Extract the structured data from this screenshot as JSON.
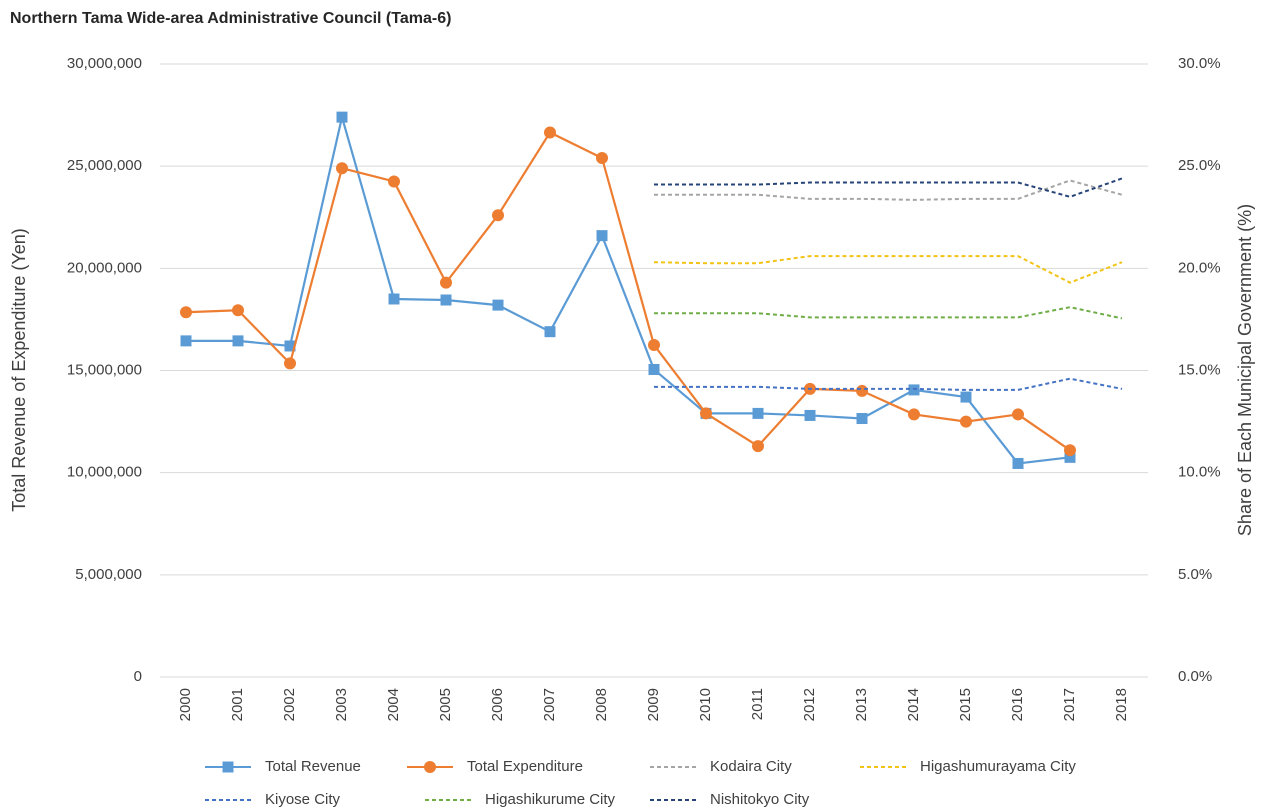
{
  "chart_data": {
    "type": "line",
    "title": "Northern Tama Wide-area Administrative Council (Tama-6)",
    "y_label": "Total Revenue of Expenditure (Yen)",
    "y2_label": "Share of Each Municipal Government (%)",
    "categories": [
      "2000",
      "2001",
      "2002",
      "2003",
      "2004",
      "2005",
      "2006",
      "2007",
      "2008",
      "2009",
      "2010",
      "2011",
      "2012",
      "2013",
      "2014",
      "2015",
      "2016",
      "2017",
      "2018"
    ],
    "ylim": [
      0,
      30000000
    ],
    "yticks": [
      0,
      {
        "value": 5000000,
        "label": "5,000,000"
      },
      {
        "value": 10000000,
        "label": "10,000,000"
      },
      {
        "value": 15000000,
        "label": "15,000,000"
      },
      {
        "value": 20000000,
        "label": "20,000,000"
      },
      {
        "value": 25000000,
        "label": "25,000,000"
      },
      {
        "value": 30000000,
        "label": "30,000,000"
      }
    ],
    "y2lim": [
      0,
      30
    ],
    "y2ticks": [
      {
        "value": 0,
        "label": "0.0%"
      },
      {
        "value": 5,
        "label": "5.0%"
      },
      {
        "value": 10,
        "label": "10.0%"
      },
      {
        "value": 15,
        "label": "15.0%"
      },
      {
        "value": 20,
        "label": "20.0%"
      },
      {
        "value": 25,
        "label": "25.0%"
      },
      {
        "value": 30,
        "label": "30.0%"
      }
    ],
    "grid": true,
    "legend": "bottom",
    "series": [
      {
        "name": "Total Revenue",
        "color": "#5b9bd5",
        "marker": "square",
        "values": [
          16450000,
          16450000,
          16200000,
          27400000,
          18500000,
          18450000,
          18200000,
          16900000,
          21600000,
          15050000,
          12900000,
          12900000,
          12800000,
          12650000,
          14050000,
          13700000,
          10450000,
          10750000,
          null
        ]
      },
      {
        "name": "Total Expenditure",
        "color": "#ed7d31",
        "marker": "circle",
        "values": [
          17850000,
          17950000,
          15350000,
          24900000,
          24250000,
          19300000,
          22600000,
          26650000,
          25400000,
          16250000,
          12900000,
          11300000,
          14100000,
          14000000,
          12850000,
          12500000,
          12850000,
          11100000,
          null
        ]
      },
      {
        "name": "Kodaira City",
        "color": "#a5a5a5",
        "dashed": true,
        "axis": "y2",
        "values": [
          null,
          null,
          null,
          null,
          null,
          null,
          null,
          null,
          null,
          23.6,
          23.6,
          23.6,
          23.4,
          23.4,
          23.35,
          23.4,
          23.4,
          24.3,
          23.6
        ]
      },
      {
        "name": "Higashumurayama City",
        "color": "#f2c314",
        "dashed": true,
        "axis": "y2",
        "values": [
          null,
          null,
          null,
          null,
          null,
          null,
          null,
          null,
          null,
          20.3,
          20.25,
          20.25,
          20.6,
          20.6,
          20.6,
          20.6,
          20.6,
          19.3,
          20.3
        ]
      },
      {
        "name": "Kiyose City",
        "color": "#4472c4",
        "dashed": true,
        "axis": "y2",
        "values": [
          null,
          null,
          null,
          null,
          null,
          null,
          null,
          null,
          null,
          14.2,
          14.2,
          14.2,
          14.1,
          14.1,
          14.1,
          14.05,
          14.05,
          14.6,
          14.1
        ]
      },
      {
        "name": "Higashikurume City",
        "color": "#70ad47",
        "dashed": true,
        "axis": "y2",
        "values": [
          null,
          null,
          null,
          null,
          null,
          null,
          null,
          null,
          null,
          17.8,
          17.8,
          17.8,
          17.6,
          17.6,
          17.6,
          17.6,
          17.6,
          18.1,
          17.55
        ]
      },
      {
        "name": "Nishitokyo City",
        "color": "#264478",
        "dashed": true,
        "axis": "y2",
        "values": [
          null,
          null,
          null,
          null,
          null,
          null,
          null,
          null,
          null,
          24.1,
          24.1,
          24.1,
          24.2,
          24.2,
          24.2,
          24.2,
          24.2,
          23.5,
          24.4
        ]
      }
    ]
  }
}
